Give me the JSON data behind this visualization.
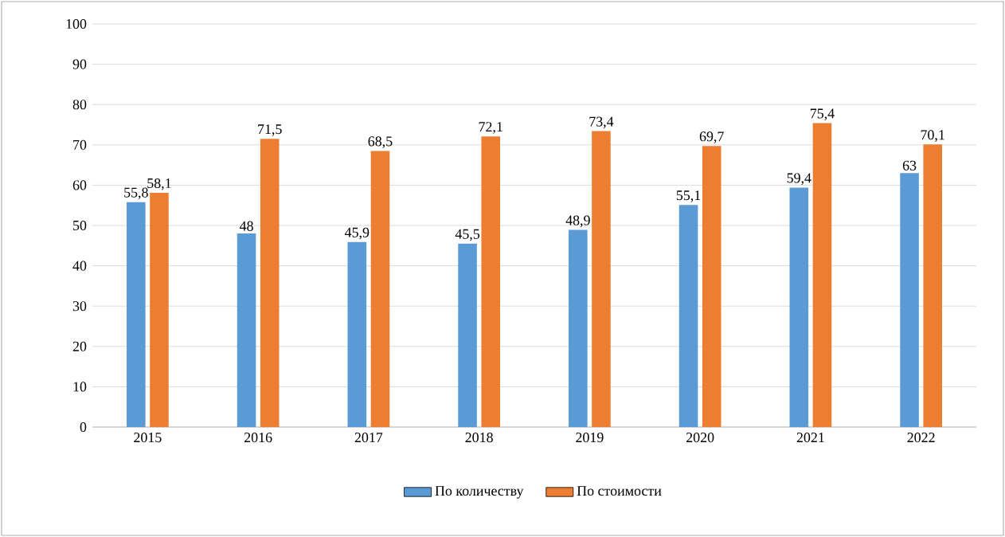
{
  "chart_data": {
    "type": "bar",
    "categories": [
      "2015",
      "2016",
      "2017",
      "2018",
      "2019",
      "2020",
      "2021",
      "2022"
    ],
    "series": [
      {
        "name": "По количеству",
        "color": "#5b9bd5",
        "values": [
          55.8,
          48,
          45.9,
          45.5,
          48.9,
          55.1,
          59.4,
          63
        ],
        "value_labels": [
          "55,8",
          "48",
          "45,9",
          "45,5",
          "48,9",
          "55,1",
          "59,4",
          "63"
        ]
      },
      {
        "name": "По стоимости",
        "color": "#ed7d31",
        "values": [
          58.1,
          71.5,
          68.5,
          72.1,
          73.4,
          69.7,
          75.4,
          70.1
        ],
        "value_labels": [
          "58,1",
          "71,5",
          "68,5",
          "72,1",
          "73,4",
          "69,7",
          "75,4",
          "70,1"
        ]
      }
    ],
    "ylim": [
      0,
      100
    ],
    "yticks": [
      0,
      10,
      20,
      30,
      40,
      50,
      60,
      70,
      80,
      90,
      100
    ],
    "grid": "y",
    "legend": "bottom"
  }
}
